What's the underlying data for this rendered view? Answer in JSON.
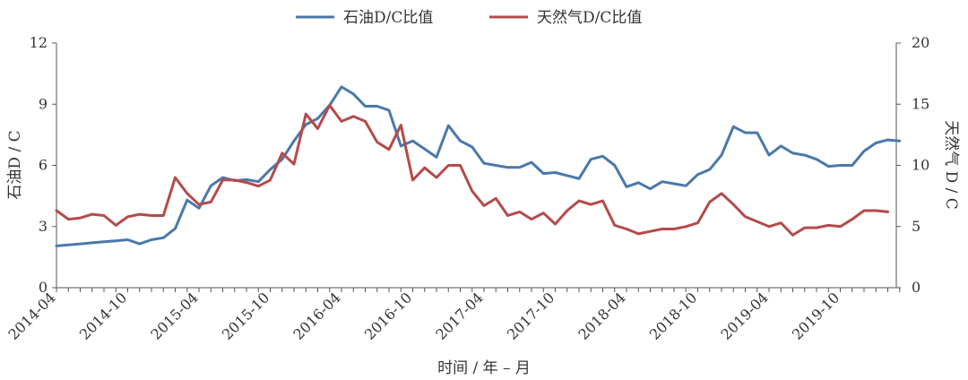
{
  "chart_data": {
    "type": "line",
    "xlabel": "时间 / 年 – 月",
    "ylabel_left": "石油D / C",
    "ylabel_right": "天然气 D / C",
    "ylim_left": [
      0,
      12
    ],
    "ylim_right": [
      0,
      20
    ],
    "yticks_left": [
      "0",
      "3",
      "6",
      "9",
      "12"
    ],
    "yticks_right": [
      "0",
      "5",
      "10",
      "15",
      "20"
    ],
    "xticks": [
      "2014-04",
      "2014-10",
      "2015-04",
      "2015-10",
      "2016-04",
      "2016-10",
      "2017-04",
      "2017-10",
      "2018-04",
      "2018-10",
      "2019-04",
      "2019-10"
    ],
    "grid": false,
    "legend": "top",
    "series": [
      {
        "name": "石油D/C比值",
        "axis": "left",
        "color": "#4a78ab",
        "values": [
          2.05,
          2.1,
          2.15,
          2.2,
          2.25,
          2.3,
          2.35,
          2.15,
          2.35,
          2.45,
          2.9,
          4.3,
          3.9,
          5.0,
          5.4,
          5.25,
          5.3,
          5.2,
          5.8,
          6.3,
          7.2,
          8.0,
          8.3,
          8.95,
          9.85,
          9.5,
          8.9,
          8.9,
          8.7,
          6.95,
          7.2,
          6.8,
          6.4,
          7.95,
          7.2,
          6.9,
          6.1,
          6.0,
          5.9,
          5.9,
          6.15,
          5.6,
          5.65,
          5.5,
          5.35,
          6.3,
          6.45,
          6.0,
          4.95,
          5.15,
          4.85,
          5.2,
          5.1,
          5.0,
          5.55,
          5.8,
          6.5,
          7.9,
          7.6,
          7.6,
          6.5,
          6.95,
          6.6,
          6.5,
          6.3,
          5.95,
          6.0,
          6.0,
          6.7,
          7.1,
          7.25,
          7.2
        ]
      },
      {
        "name": "天然气D/C比值",
        "axis": "right",
        "color": "#b54a4a",
        "values": [
          6.3,
          5.6,
          5.7,
          6.0,
          5.9,
          5.1,
          5.8,
          6.0,
          5.9,
          5.9,
          9.0,
          7.7,
          6.8,
          7.0,
          8.8,
          8.8,
          8.6,
          8.3,
          8.8,
          11.0,
          10.1,
          14.2,
          13.0,
          14.9,
          13.6,
          14.0,
          13.6,
          11.9,
          11.3,
          13.3,
          8.8,
          9.8,
          9.0,
          10.0,
          10.0,
          7.9,
          6.7,
          7.3,
          5.9,
          6.2,
          5.6,
          6.1,
          5.2,
          6.3,
          7.1,
          6.8,
          7.1,
          5.1,
          4.8,
          4.4,
          4.6,
          4.8,
          4.8,
          5.0,
          5.3,
          7.0,
          7.7,
          6.8,
          5.8,
          5.4,
          5.0,
          5.3,
          4.3,
          4.9,
          4.9,
          5.1,
          5.0,
          5.6,
          6.3,
          6.3,
          6.2
        ]
      }
    ]
  }
}
